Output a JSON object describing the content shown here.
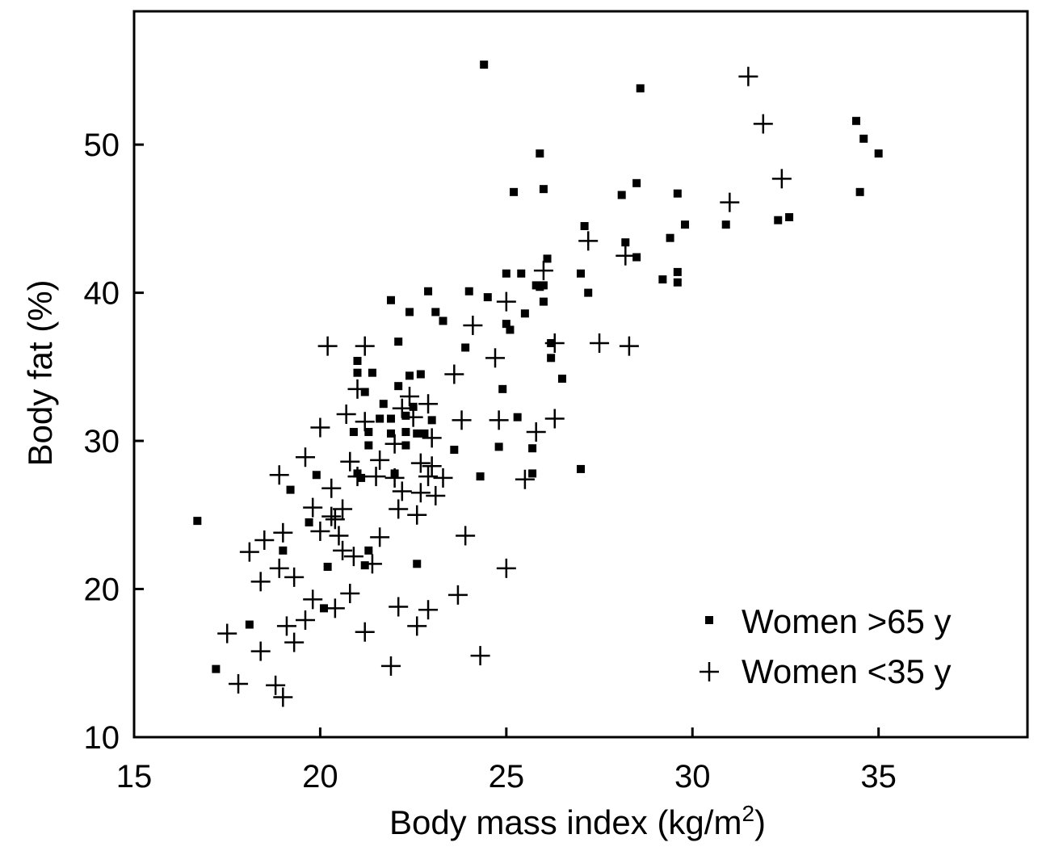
{
  "chart_data": {
    "type": "scatter",
    "title": "",
    "xlabel": "Body mass index (kg/m",
    "xlabel_sup": "2",
    "xlabel_close": ")",
    "ylabel": "Body fat (%)",
    "xlim": [
      15,
      39
    ],
    "ylim": [
      10,
      59
    ],
    "xticks": [
      15,
      20,
      25,
      30,
      35
    ],
    "yticks": [
      10,
      20,
      30,
      40,
      50
    ],
    "grid": false,
    "legend_position": "bottom-right",
    "series": [
      {
        "name": "Women >65 y",
        "marker": "square",
        "points": [
          [
            24.4,
            55.4
          ],
          [
            28.6,
            53.8
          ],
          [
            34.4,
            51.6
          ],
          [
            34.6,
            50.4
          ],
          [
            35.0,
            49.4
          ],
          [
            25.9,
            49.4
          ],
          [
            26.0,
            47.0
          ],
          [
            25.2,
            46.8
          ],
          [
            28.5,
            47.4
          ],
          [
            28.1,
            46.6
          ],
          [
            29.6,
            46.7
          ],
          [
            34.5,
            46.8
          ],
          [
            32.6,
            45.1
          ],
          [
            32.3,
            44.9
          ],
          [
            30.9,
            44.6
          ],
          [
            29.8,
            44.6
          ],
          [
            27.1,
            44.5
          ],
          [
            29.4,
            43.7
          ],
          [
            28.2,
            43.4
          ],
          [
            28.5,
            42.4
          ],
          [
            26.1,
            42.3
          ],
          [
            25.0,
            41.3
          ],
          [
            25.4,
            41.3
          ],
          [
            27.0,
            41.3
          ],
          [
            29.6,
            41.4
          ],
          [
            29.2,
            40.9
          ],
          [
            29.6,
            40.7
          ],
          [
            25.8,
            40.5
          ],
          [
            25.9,
            40.4
          ],
          [
            26.0,
            40.5
          ],
          [
            22.9,
            40.1
          ],
          [
            24.0,
            40.1
          ],
          [
            27.2,
            40.0
          ],
          [
            21.9,
            39.5
          ],
          [
            26.0,
            39.4
          ],
          [
            24.5,
            39.7
          ],
          [
            22.4,
            38.7
          ],
          [
            23.1,
            38.7
          ],
          [
            25.5,
            38.6
          ],
          [
            23.3,
            38.1
          ],
          [
            25.0,
            37.9
          ],
          [
            25.1,
            37.5
          ],
          [
            22.1,
            36.7
          ],
          [
            23.9,
            36.3
          ],
          [
            26.2,
            36.6
          ],
          [
            26.2,
            35.6
          ],
          [
            21.0,
            35.4
          ],
          [
            21.0,
            34.6
          ],
          [
            21.4,
            34.6
          ],
          [
            22.4,
            34.4
          ],
          [
            22.7,
            34.5
          ],
          [
            26.5,
            34.2
          ],
          [
            22.1,
            33.7
          ],
          [
            21.2,
            33.3
          ],
          [
            24.9,
            33.5
          ],
          [
            21.7,
            32.5
          ],
          [
            22.5,
            32.3
          ],
          [
            21.6,
            31.5
          ],
          [
            21.9,
            31.5
          ],
          [
            22.3,
            31.7
          ],
          [
            25.3,
            31.6
          ],
          [
            23.0,
            31.4
          ],
          [
            21.3,
            30.6
          ],
          [
            20.9,
            30.6
          ],
          [
            21.9,
            30.5
          ],
          [
            22.3,
            30.6
          ],
          [
            22.6,
            30.5
          ],
          [
            22.8,
            30.5
          ],
          [
            21.3,
            29.7
          ],
          [
            22.3,
            29.7
          ],
          [
            24.8,
            29.6
          ],
          [
            23.6,
            29.4
          ],
          [
            25.7,
            29.5
          ],
          [
            19.9,
            27.7
          ],
          [
            21.0,
            27.8
          ],
          [
            21.1,
            27.5
          ],
          [
            22.0,
            27.8
          ],
          [
            24.3,
            27.6
          ],
          [
            25.7,
            27.8
          ],
          [
            27.0,
            28.1
          ],
          [
            19.2,
            26.7
          ],
          [
            19.7,
            24.5
          ],
          [
            16.7,
            24.6
          ],
          [
            19.0,
            22.6
          ],
          [
            21.3,
            22.6
          ],
          [
            20.2,
            21.5
          ],
          [
            21.2,
            21.6
          ],
          [
            22.6,
            21.7
          ],
          [
            20.1,
            18.7
          ],
          [
            18.1,
            17.6
          ],
          [
            17.2,
            14.6
          ]
        ]
      },
      {
        "name": "Women <35 y",
        "marker": "plus",
        "points": [
          [
            31.5,
            54.6
          ],
          [
            31.9,
            51.4
          ],
          [
            32.4,
            47.7
          ],
          [
            31.0,
            46.1
          ],
          [
            27.2,
            43.5
          ],
          [
            28.2,
            42.5
          ],
          [
            26.0,
            41.5
          ],
          [
            25.0,
            39.4
          ],
          [
            24.1,
            37.8
          ],
          [
            20.2,
            36.4
          ],
          [
            21.2,
            36.4
          ],
          [
            26.3,
            36.6
          ],
          [
            27.5,
            36.6
          ],
          [
            28.3,
            36.4
          ],
          [
            24.7,
            35.6
          ],
          [
            23.6,
            34.5
          ],
          [
            21.0,
            33.5
          ],
          [
            22.4,
            33.0
          ],
          [
            22.2,
            32.2
          ],
          [
            22.9,
            32.5
          ],
          [
            22.5,
            31.6
          ],
          [
            21.2,
            31.3
          ],
          [
            23.8,
            31.4
          ],
          [
            24.8,
            31.4
          ],
          [
            26.3,
            31.5
          ],
          [
            25.8,
            30.6
          ],
          [
            20.7,
            31.8
          ],
          [
            20.0,
            30.9
          ],
          [
            23.0,
            30.2
          ],
          [
            22.0,
            29.8
          ],
          [
            19.6,
            28.9
          ],
          [
            20.8,
            28.6
          ],
          [
            21.6,
            28.7
          ],
          [
            22.7,
            28.5
          ],
          [
            23.0,
            28.3
          ],
          [
            18.9,
            27.7
          ],
          [
            21.0,
            27.6
          ],
          [
            21.5,
            27.6
          ],
          [
            22.0,
            27.5
          ],
          [
            22.9,
            27.6
          ],
          [
            23.3,
            27.5
          ],
          [
            25.5,
            27.4
          ],
          [
            20.3,
            26.8
          ],
          [
            22.2,
            26.6
          ],
          [
            22.7,
            26.5
          ],
          [
            23.1,
            26.3
          ],
          [
            19.8,
            25.5
          ],
          [
            20.6,
            25.4
          ],
          [
            22.1,
            25.4
          ],
          [
            20.3,
            24.9
          ],
          [
            20.4,
            24.7
          ],
          [
            22.6,
            25.0
          ],
          [
            20.0,
            23.9
          ],
          [
            20.5,
            23.6
          ],
          [
            19.0,
            23.8
          ],
          [
            18.5,
            23.3
          ],
          [
            21.6,
            23.5
          ],
          [
            23.9,
            23.6
          ],
          [
            18.1,
            22.5
          ],
          [
            20.6,
            22.6
          ],
          [
            20.9,
            22.2
          ],
          [
            21.4,
            21.7
          ],
          [
            18.9,
            21.4
          ],
          [
            25.0,
            21.4
          ],
          [
            18.4,
            20.5
          ],
          [
            19.3,
            20.8
          ],
          [
            20.8,
            19.7
          ],
          [
            19.8,
            19.3
          ],
          [
            23.7,
            19.6
          ],
          [
            20.4,
            18.7
          ],
          [
            22.1,
            18.8
          ],
          [
            22.9,
            18.6
          ],
          [
            19.6,
            17.9
          ],
          [
            19.1,
            17.5
          ],
          [
            22.6,
            17.5
          ],
          [
            17.5,
            17.0
          ],
          [
            21.2,
            17.1
          ],
          [
            19.3,
            16.4
          ],
          [
            18.4,
            15.8
          ],
          [
            24.3,
            15.5
          ],
          [
            21.9,
            14.8
          ],
          [
            17.8,
            13.6
          ],
          [
            18.8,
            13.5
          ],
          [
            19.0,
            12.7
          ]
        ]
      }
    ]
  }
}
